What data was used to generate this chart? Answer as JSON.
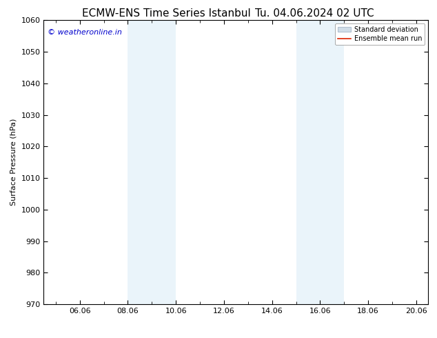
{
  "title": "ECMW-ENS Time Series Istanbul",
  "title_right": "Tu. 04.06.2024 02 UTC",
  "ylabel": "Surface Pressure (hPa)",
  "ylim": [
    970,
    1060
  ],
  "yticks": [
    970,
    980,
    990,
    1000,
    1010,
    1020,
    1030,
    1040,
    1050,
    1060
  ],
  "xlim_start": 4.5,
  "xlim_end": 20.5,
  "xtick_labels": [
    "06.06",
    "08.06",
    "10.06",
    "12.06",
    "14.06",
    "16.06",
    "18.06",
    "20.06"
  ],
  "xtick_positions": [
    6,
    8,
    10,
    12,
    14,
    16,
    18,
    20
  ],
  "shaded_bands": [
    {
      "x_start": 8.0,
      "x_end": 9.0
    },
    {
      "x_start": 9.0,
      "x_end": 10.0
    },
    {
      "x_start": 15.0,
      "x_end": 16.0
    },
    {
      "x_start": 16.0,
      "x_end": 17.0
    }
  ],
  "shade_color": "#ddeef8",
  "shade_alpha": 0.6,
  "watermark_text": "© weatheronline.in",
  "watermark_color": "#0000cc",
  "legend_std_label": "Standard deviation",
  "legend_ens_label": "Ensemble mean run",
  "std_color": "#d0dde8",
  "std_edge_color": "#b0bfcf",
  "ens_color": "#dd2200",
  "bg_color": "#ffffff",
  "title_fontsize": 11,
  "axis_label_fontsize": 8,
  "tick_fontsize": 8,
  "watermark_fontsize": 8
}
